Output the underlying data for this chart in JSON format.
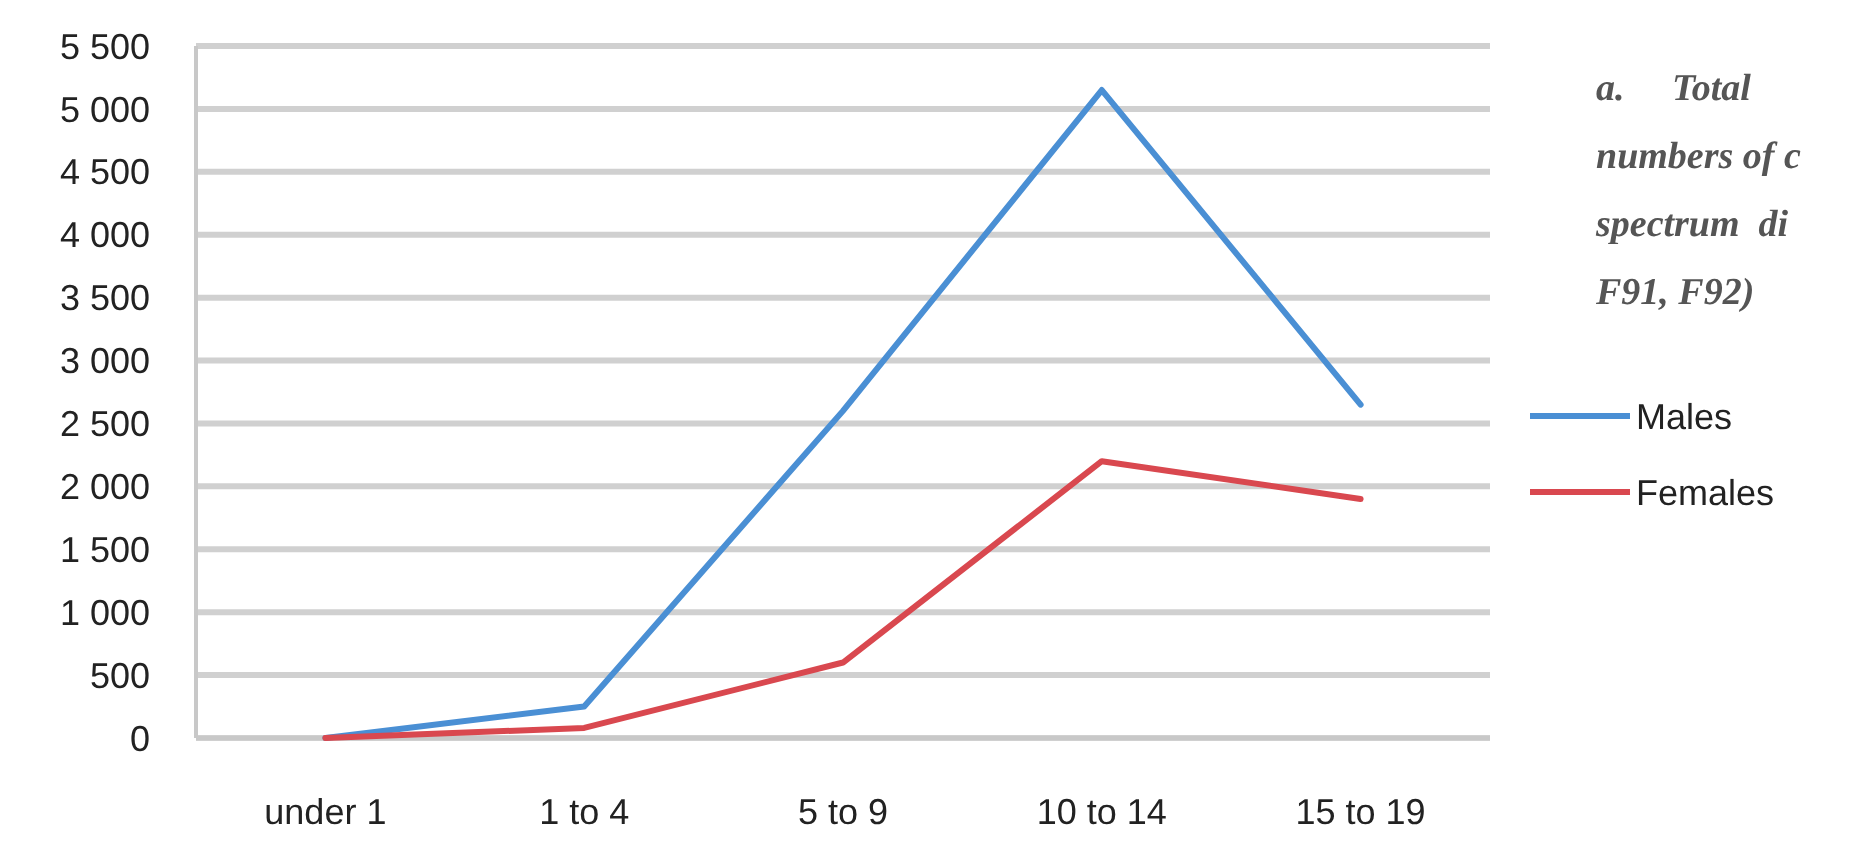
{
  "chart_data": {
    "type": "line",
    "categories": [
      "under 1",
      "1 to 4",
      "5 to 9",
      "10 to 14",
      "15 to 19"
    ],
    "series": [
      {
        "name": "Males",
        "color": "#4a8fd4",
        "values": [
          0,
          250,
          2600,
          5150,
          2650
        ]
      },
      {
        "name": "Females",
        "color": "#d9484f",
        "values": [
          0,
          80,
          600,
          2200,
          1900
        ]
      }
    ],
    "ylim": [
      0,
      5500
    ],
    "yticks": [
      0,
      {
        "value": 500,
        "label": "500"
      },
      {
        "value": 1000,
        "label": "1 000"
      },
      {
        "value": 1500,
        "label": "1 500"
      },
      {
        "value": 2000,
        "label": "2 000"
      },
      {
        "value": 2500,
        "label": "2 500"
      },
      {
        "value": 3000,
        "label": "3 000"
      },
      {
        "value": 3500,
        "label": "3 500"
      },
      {
        "value": 4000,
        "label": "4 000"
      },
      {
        "value": 4500,
        "label": "4 500"
      },
      {
        "value": 5000,
        "label": "5 000"
      },
      {
        "value": 5500,
        "label": "5 500"
      }
    ],
    "grid": "y",
    "legend": "right",
    "marker": "none",
    "line_style": "solid",
    "annotations": [
      "a.     Total",
      "numbers of c",
      "spectrum  di",
      "F91, F92)"
    ]
  }
}
